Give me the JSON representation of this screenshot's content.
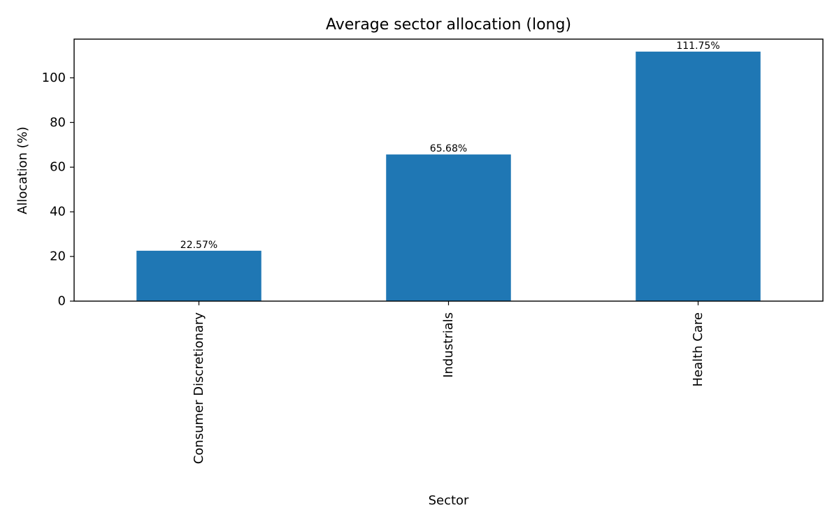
{
  "chart_data": {
    "type": "bar",
    "title": "Average sector allocation (long)",
    "xlabel": "Sector",
    "ylabel": "Allocation (%)",
    "categories": [
      "Consumer Discretionary",
      "Industrials",
      "Health Care"
    ],
    "values": [
      22.57,
      65.68,
      111.75
    ],
    "data_labels": [
      "22.57%",
      "65.68%",
      "111.75%"
    ],
    "yticks": [
      0,
      20,
      40,
      60,
      80,
      100
    ],
    "ylim": [
      0,
      117.34
    ],
    "grid": false,
    "legend": "none",
    "bar_color": "#1f77b4",
    "tick_label_rotation": "vertical"
  }
}
